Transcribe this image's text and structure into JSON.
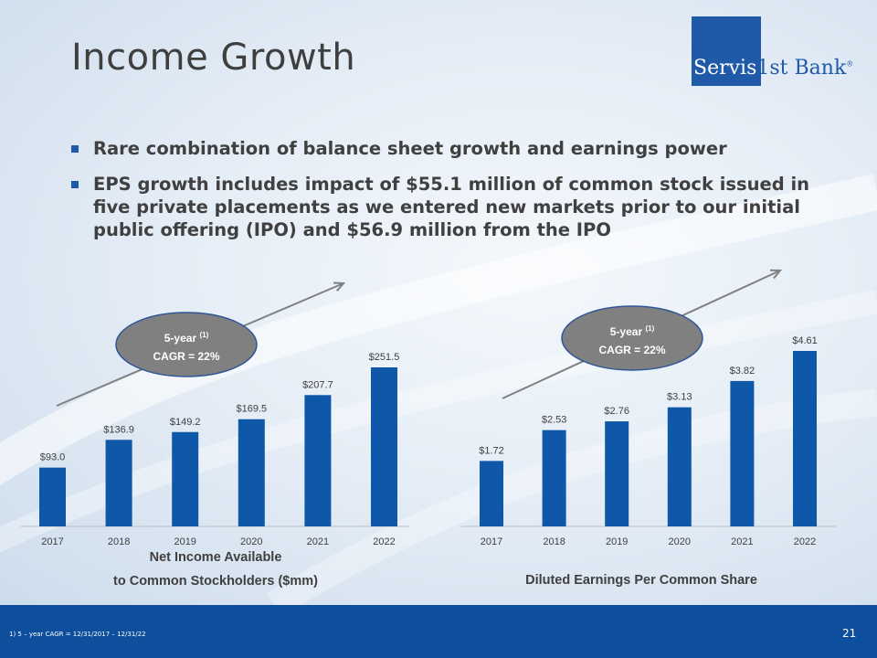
{
  "title": "Income Growth",
  "logo": {
    "part1": "Servis",
    "part2": "1st Bank",
    "mark": "®"
  },
  "bullets": [
    "Rare combination of balance sheet growth and earnings power",
    "EPS growth includes impact of $55.1 million of common stock issued in five private placements as we entered new markets prior to our initial public offering (IPO) and $56.9 million from the IPO"
  ],
  "colors": {
    "bar": "#0f57a8",
    "brand": "#1f5aa8",
    "footer": "#0d4f9c",
    "bubble": "#808080",
    "arrow": "#808080"
  },
  "chart_data": [
    {
      "type": "bar",
      "title": "Net Income Available to Common Stockholders ($mm)",
      "title_lines": [
        "Net Income Available",
        "to Common Stockholders ($mm)"
      ],
      "categories": [
        "2017",
        "2018",
        "2019",
        "2020",
        "2021",
        "2022"
      ],
      "values": [
        93.0,
        136.9,
        149.2,
        169.5,
        207.7,
        251.5
      ],
      "labels": [
        "$93.0",
        "$136.9",
        "$149.2",
        "$169.5",
        "$207.7",
        "$251.5"
      ],
      "ylim": [
        0,
        251.5
      ],
      "annotation": {
        "line1": "5-year",
        "sup": "(1)",
        "line2": "CAGR = 22%"
      }
    },
    {
      "type": "bar",
      "title": "Diluted Earnings Per Common Share",
      "title_lines": [
        "Diluted Earnings Per Common Share"
      ],
      "categories": [
        "2017",
        "2018",
        "2019",
        "2020",
        "2021",
        "2022"
      ],
      "values": [
        1.72,
        2.53,
        2.76,
        3.13,
        3.82,
        4.61
      ],
      "labels": [
        "$1.72",
        "$2.53",
        "$2.76",
        "$3.13",
        "$3.82",
        "$4.61"
      ],
      "ylim": [
        0,
        4.61
      ],
      "annotation": {
        "line1": "5-year",
        "sup": "(1)",
        "line2": "CAGR = 22%"
      }
    }
  ],
  "footer": {
    "footnote": "1)      5 – year CAGR = 12/31/2017 – 12/31/22",
    "page": "21"
  }
}
